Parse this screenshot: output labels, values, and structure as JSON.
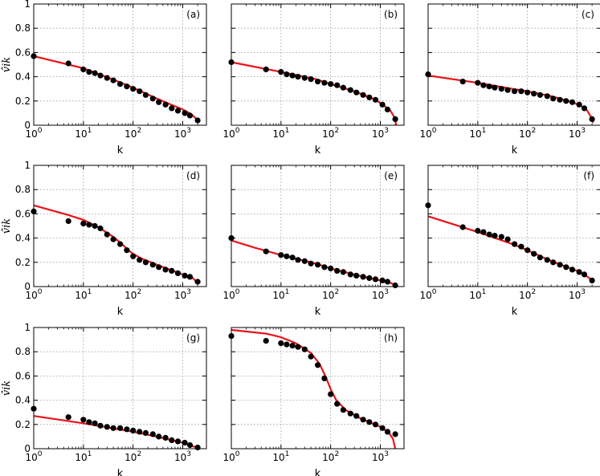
{
  "chart_data": {
    "type": "scatter",
    "xscale": "log",
    "xlim": [
      1,
      3000
    ],
    "ylim": [
      0,
      1
    ],
    "xlabel": "k",
    "ylabel": "v̂ik",
    "xticks": [
      {
        "value": 1,
        "base": "10",
        "exp": "0"
      },
      {
        "value": 10,
        "base": "10",
        "exp": "1"
      },
      {
        "value": 100,
        "base": "10",
        "exp": "2"
      },
      {
        "value": 1000,
        "base": "10",
        "exp": "3"
      }
    ],
    "yticks": [
      {
        "value": 0,
        "label": "0"
      },
      {
        "value": 0.2,
        "label": "0.2"
      },
      {
        "value": 0.4,
        "label": "0.4"
      },
      {
        "value": 0.6,
        "label": "0.6"
      },
      {
        "value": 0.8,
        "label": "0.8"
      },
      {
        "value": 1,
        "label": "1"
      }
    ],
    "grid": true,
    "marker_color": "#000000",
    "line_color": "#e8141a",
    "panels": [
      {
        "tag": "(a)",
        "points": [
          [
            1,
            0.57
          ],
          [
            5,
            0.51
          ],
          [
            10,
            0.46
          ],
          [
            13,
            0.44
          ],
          [
            17,
            0.43
          ],
          [
            22,
            0.41
          ],
          [
            30,
            0.39
          ],
          [
            40,
            0.37
          ],
          [
            55,
            0.34
          ],
          [
            75,
            0.32
          ],
          [
            100,
            0.3
          ],
          [
            135,
            0.28
          ],
          [
            180,
            0.25
          ],
          [
            250,
            0.22
          ],
          [
            330,
            0.19
          ],
          [
            450,
            0.17
          ],
          [
            600,
            0.14
          ],
          [
            800,
            0.12
          ],
          [
            1100,
            0.1
          ],
          [
            1400,
            0.08
          ],
          [
            2000,
            0.04
          ]
        ],
        "curve": [
          [
            1,
            0.57
          ],
          [
            10,
            0.47
          ],
          [
            50,
            0.36
          ],
          [
            100,
            0.31
          ],
          [
            300,
            0.22
          ],
          [
            1000,
            0.13
          ],
          [
            1500,
            0.09
          ],
          [
            1800,
            0.06
          ],
          [
            2100,
            0.02
          ]
        ]
      },
      {
        "tag": "(b)",
        "points": [
          [
            1,
            0.52
          ],
          [
            5,
            0.46
          ],
          [
            10,
            0.44
          ],
          [
            13,
            0.42
          ],
          [
            17,
            0.41
          ],
          [
            22,
            0.4
          ],
          [
            30,
            0.39
          ],
          [
            40,
            0.38
          ],
          [
            55,
            0.36
          ],
          [
            75,
            0.35
          ],
          [
            100,
            0.34
          ],
          [
            135,
            0.33
          ],
          [
            180,
            0.31
          ],
          [
            250,
            0.29
          ],
          [
            330,
            0.27
          ],
          [
            450,
            0.25
          ],
          [
            600,
            0.23
          ],
          [
            800,
            0.21
          ],
          [
            1100,
            0.17
          ],
          [
            1400,
            0.13
          ],
          [
            2000,
            0.05
          ]
        ],
        "curve": [
          [
            1,
            0.52
          ],
          [
            10,
            0.44
          ],
          [
            50,
            0.38
          ],
          [
            100,
            0.34
          ],
          [
            300,
            0.28
          ],
          [
            800,
            0.21
          ],
          [
            1200,
            0.16
          ],
          [
            1600,
            0.12
          ],
          [
            1900,
            0.07
          ],
          [
            2100,
            0.0
          ]
        ]
      },
      {
        "tag": "(c)",
        "points": [
          [
            1,
            0.42
          ],
          [
            5,
            0.36
          ],
          [
            10,
            0.35
          ],
          [
            13,
            0.33
          ],
          [
            17,
            0.32
          ],
          [
            22,
            0.31
          ],
          [
            30,
            0.3
          ],
          [
            40,
            0.29
          ],
          [
            55,
            0.28
          ],
          [
            75,
            0.28
          ],
          [
            100,
            0.27
          ],
          [
            135,
            0.26
          ],
          [
            180,
            0.25
          ],
          [
            250,
            0.24
          ],
          [
            330,
            0.22
          ],
          [
            450,
            0.21
          ],
          [
            600,
            0.2
          ],
          [
            800,
            0.19
          ],
          [
            1100,
            0.17
          ],
          [
            1400,
            0.14
          ],
          [
            2000,
            0.05
          ]
        ],
        "curve": [
          [
            1,
            0.41
          ],
          [
            10,
            0.35
          ],
          [
            50,
            0.3
          ],
          [
            100,
            0.28
          ],
          [
            300,
            0.24
          ],
          [
            800,
            0.19
          ],
          [
            1200,
            0.16
          ],
          [
            1600,
            0.12
          ],
          [
            1900,
            0.07
          ],
          [
            2100,
            0.02
          ]
        ]
      },
      {
        "tag": "(d)",
        "points": [
          [
            1,
            0.62
          ],
          [
            5,
            0.54
          ],
          [
            10,
            0.52
          ],
          [
            13,
            0.51
          ],
          [
            17,
            0.5
          ],
          [
            22,
            0.48
          ],
          [
            30,
            0.43
          ],
          [
            40,
            0.39
          ],
          [
            55,
            0.35
          ],
          [
            75,
            0.3
          ],
          [
            100,
            0.25
          ],
          [
            135,
            0.22
          ],
          [
            180,
            0.2
          ],
          [
            250,
            0.18
          ],
          [
            330,
            0.16
          ],
          [
            450,
            0.14
          ],
          [
            600,
            0.13
          ],
          [
            800,
            0.11
          ],
          [
            1100,
            0.09
          ],
          [
            1400,
            0.08
          ],
          [
            2000,
            0.04
          ]
        ],
        "curve": [
          [
            1,
            0.67
          ],
          [
            5,
            0.59
          ],
          [
            10,
            0.55
          ],
          [
            20,
            0.49
          ],
          [
            40,
            0.41
          ],
          [
            60,
            0.35
          ],
          [
            80,
            0.3
          ],
          [
            100,
            0.27
          ],
          [
            150,
            0.23
          ],
          [
            300,
            0.18
          ],
          [
            1000,
            0.1
          ],
          [
            1600,
            0.07
          ],
          [
            2100,
            0.02
          ]
        ]
      },
      {
        "tag": "(e)",
        "points": [
          [
            1,
            0.4
          ],
          [
            5,
            0.29
          ],
          [
            10,
            0.26
          ],
          [
            13,
            0.25
          ],
          [
            17,
            0.24
          ],
          [
            22,
            0.22
          ],
          [
            30,
            0.21
          ],
          [
            40,
            0.19
          ],
          [
            55,
            0.18
          ],
          [
            75,
            0.16
          ],
          [
            100,
            0.15
          ],
          [
            135,
            0.13
          ],
          [
            180,
            0.12
          ],
          [
            250,
            0.1
          ],
          [
            330,
            0.09
          ],
          [
            450,
            0.08
          ],
          [
            600,
            0.07
          ],
          [
            800,
            0.06
          ],
          [
            1100,
            0.05
          ],
          [
            1400,
            0.04
          ],
          [
            2000,
            0.01
          ]
        ],
        "curve": [
          [
            1,
            0.38
          ],
          [
            3,
            0.32
          ],
          [
            10,
            0.26
          ],
          [
            50,
            0.19
          ],
          [
            100,
            0.15
          ],
          [
            300,
            0.1
          ],
          [
            1000,
            0.05
          ],
          [
            1600,
            0.03
          ],
          [
            2100,
            0.01
          ]
        ]
      },
      {
        "tag": "(f)",
        "points": [
          [
            1,
            0.67
          ],
          [
            5,
            0.49
          ],
          [
            10,
            0.46
          ],
          [
            13,
            0.45
          ],
          [
            17,
            0.43
          ],
          [
            22,
            0.42
          ],
          [
            30,
            0.41
          ],
          [
            40,
            0.39
          ],
          [
            55,
            0.35
          ],
          [
            75,
            0.33
          ],
          [
            100,
            0.3
          ],
          [
            135,
            0.27
          ],
          [
            180,
            0.24
          ],
          [
            250,
            0.22
          ],
          [
            330,
            0.2
          ],
          [
            450,
            0.18
          ],
          [
            600,
            0.16
          ],
          [
            800,
            0.14
          ],
          [
            1100,
            0.12
          ],
          [
            1400,
            0.1
          ],
          [
            2000,
            0.05
          ]
        ],
        "curve": [
          [
            1,
            0.58
          ],
          [
            10,
            0.45
          ],
          [
            50,
            0.35
          ],
          [
            100,
            0.3
          ],
          [
            300,
            0.21
          ],
          [
            1000,
            0.13
          ],
          [
            1500,
            0.09
          ],
          [
            1900,
            0.06
          ],
          [
            2100,
            0.03
          ]
        ]
      },
      {
        "tag": "(g)",
        "points": [
          [
            1,
            0.33
          ],
          [
            5,
            0.26
          ],
          [
            10,
            0.24
          ],
          [
            13,
            0.22
          ],
          [
            17,
            0.21
          ],
          [
            22,
            0.19
          ],
          [
            30,
            0.18
          ],
          [
            40,
            0.17
          ],
          [
            55,
            0.17
          ],
          [
            75,
            0.16
          ],
          [
            100,
            0.15
          ],
          [
            135,
            0.14
          ],
          [
            180,
            0.13
          ],
          [
            250,
            0.12
          ],
          [
            330,
            0.1
          ],
          [
            450,
            0.09
          ],
          [
            600,
            0.07
          ],
          [
            800,
            0.06
          ],
          [
            1100,
            0.05
          ],
          [
            1400,
            0.03
          ],
          [
            2000,
            0.01
          ]
        ],
        "curve": [
          [
            1,
            0.27
          ],
          [
            10,
            0.21
          ],
          [
            50,
            0.16
          ],
          [
            100,
            0.14
          ],
          [
            300,
            0.1
          ],
          [
            1000,
            0.05
          ],
          [
            1600,
            0.02
          ],
          [
            2000,
            0.01
          ]
        ]
      },
      {
        "tag": "(h)",
        "points": [
          [
            1,
            0.93
          ],
          [
            5,
            0.89
          ],
          [
            10,
            0.87
          ],
          [
            13,
            0.86
          ],
          [
            17,
            0.85
          ],
          [
            22,
            0.84
          ],
          [
            30,
            0.82
          ],
          [
            40,
            0.76
          ],
          [
            55,
            0.69
          ],
          [
            75,
            0.58
          ],
          [
            100,
            0.45
          ],
          [
            135,
            0.37
          ],
          [
            180,
            0.32
          ],
          [
            250,
            0.29
          ],
          [
            330,
            0.27
          ],
          [
            450,
            0.24
          ],
          [
            600,
            0.22
          ],
          [
            800,
            0.2
          ],
          [
            1100,
            0.17
          ],
          [
            1400,
            0.14
          ],
          [
            2000,
            0.12
          ]
        ],
        "curve": [
          [
            1,
            0.98
          ],
          [
            5,
            0.95
          ],
          [
            10,
            0.92
          ],
          [
            20,
            0.87
          ],
          [
            40,
            0.79
          ],
          [
            60,
            0.7
          ],
          [
            80,
            0.59
          ],
          [
            100,
            0.49
          ],
          [
            130,
            0.4
          ],
          [
            200,
            0.32
          ],
          [
            400,
            0.25
          ],
          [
            1000,
            0.18
          ],
          [
            1500,
            0.13
          ],
          [
            1800,
            0.08
          ],
          [
            2000,
            0.0
          ]
        ]
      }
    ]
  }
}
